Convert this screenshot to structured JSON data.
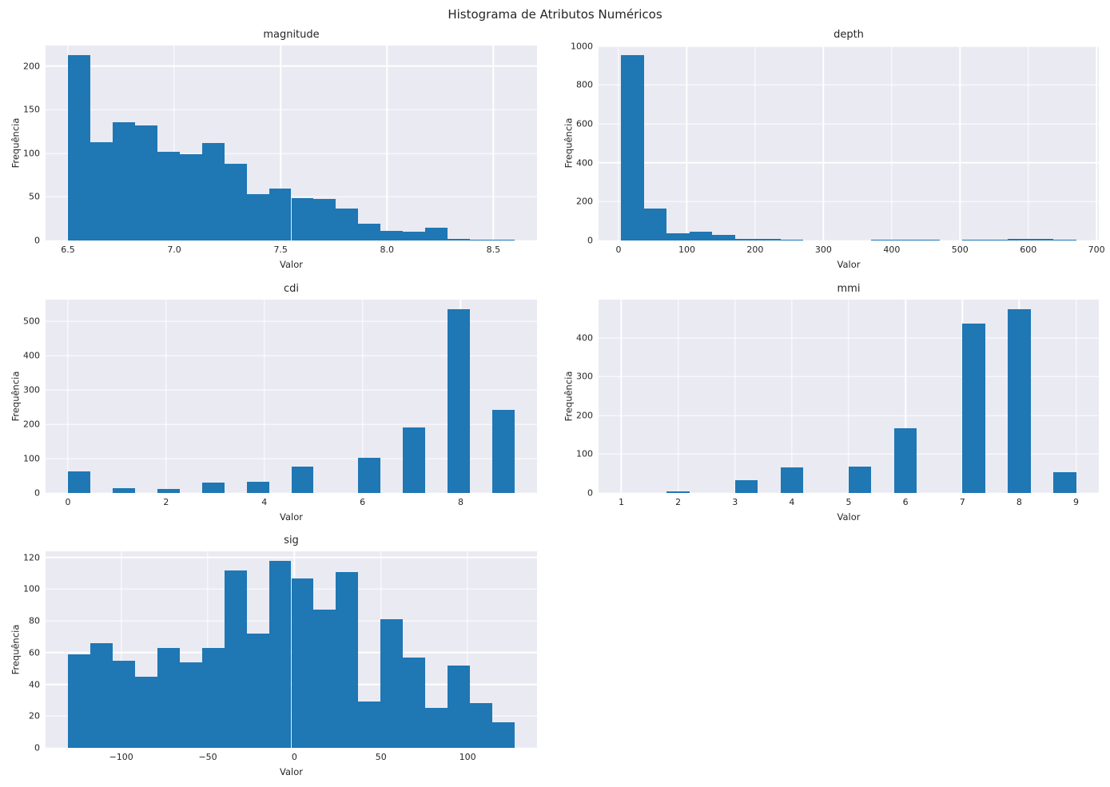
{
  "figure_title": "Histograma de Atributos Numéricos",
  "colors": {
    "bar": "#1f77b4",
    "plot_background": "#eaeaf2",
    "gridline": "#ffffff",
    "text": "#262626",
    "figure_background": "#ffffff"
  },
  "chart_data": [
    {
      "id": "magnitude",
      "type": "bar",
      "title": "magnitude",
      "xlabel": "Valor",
      "ylabel": "Frequência",
      "xlim": [
        6.395,
        8.705
      ],
      "ylim": [
        0,
        223.7
      ],
      "bin_start": 6.5,
      "bin_width": 0.105,
      "values": [
        213,
        113,
        136,
        132,
        102,
        99,
        112,
        88,
        53,
        60,
        49,
        48,
        37,
        19,
        11,
        10,
        15,
        2,
        1,
        1
      ],
      "xtick_values": [
        6.5,
        7.0,
        7.5,
        8.0,
        8.5
      ],
      "xtick_labels": [
        "6.5",
        "7.0",
        "7.5",
        "8.0",
        "8.5"
      ],
      "ytick_values": [
        0,
        50,
        100,
        150,
        200
      ],
      "ytick_labels": [
        "0",
        "50",
        "100",
        "150",
        "200"
      ],
      "grid": true,
      "legend": false
    },
    {
      "id": "depth",
      "type": "bar",
      "title": "depth",
      "xlabel": "Valor",
      "ylabel": "Frequência",
      "xlim": [
        -29.3,
        703.3
      ],
      "ylim": [
        0,
        1002.8
      ],
      "bin_start": 4.0,
      "bin_width": 33.3,
      "values": [
        955,
        165,
        35,
        47,
        27,
        8,
        7,
        3,
        0,
        0,
        0,
        3,
        3,
        3,
        0,
        3,
        3,
        10,
        10,
        4
      ],
      "xtick_values": [
        0,
        100,
        200,
        300,
        400,
        500,
        600,
        700
      ],
      "xtick_labels": [
        "0",
        "100",
        "200",
        "300",
        "400",
        "500",
        "600",
        "700"
      ],
      "ytick_values": [
        0,
        200,
        400,
        600,
        800,
        1000
      ],
      "ytick_labels": [
        "0",
        "200",
        "400",
        "600",
        "800",
        "1000"
      ],
      "grid": true,
      "legend": false
    },
    {
      "id": "cdi",
      "type": "bar",
      "title": "cdi",
      "xlabel": "Valor",
      "ylabel": "Frequência",
      "xlim": [
        -0.455,
        9.555
      ],
      "ylim": [
        0,
        563.9
      ],
      "bin_start": 0,
      "bin_width": 0.455,
      "values": [
        64,
        0,
        14,
        0,
        12,
        0,
        31,
        0,
        33,
        0,
        78,
        0,
        0,
        103,
        0,
        192,
        0,
        537,
        0,
        243
      ],
      "xtick_values": [
        0,
        2,
        4,
        6,
        8
      ],
      "xtick_labels": [
        "0",
        "2",
        "4",
        "6",
        "8"
      ],
      "ytick_values": [
        0,
        100,
        200,
        300,
        400,
        500
      ],
      "ytick_labels": [
        "0",
        "100",
        "200",
        "300",
        "400",
        "500"
      ],
      "grid": true,
      "legend": false
    },
    {
      "id": "mmi",
      "type": "bar",
      "title": "mmi",
      "xlabel": "Valor",
      "ylabel": "Frequência",
      "xlim": [
        0.6,
        9.4
      ],
      "ylim": [
        0,
        498.8
      ],
      "bin_start": 1,
      "bin_width": 0.4,
      "values": [
        0,
        0,
        5,
        0,
        0,
        33,
        0,
        66,
        0,
        0,
        68,
        0,
        166,
        0,
        0,
        437,
        0,
        475,
        0,
        54
      ],
      "xtick_values": [
        1,
        2,
        3,
        4,
        5,
        6,
        7,
        8,
        9
      ],
      "xtick_labels": [
        "1",
        "2",
        "3",
        "4",
        "5",
        "6",
        "7",
        "8",
        "9"
      ],
      "ytick_values": [
        0,
        100,
        200,
        300,
        400
      ],
      "ytick_labels": [
        "0",
        "100",
        "200",
        "300",
        "400"
      ],
      "grid": true,
      "legend": false
    },
    {
      "id": "sig",
      "type": "bar",
      "title": "sig",
      "xlabel": "Valor",
      "ylabel": "Frequência",
      "xlim": [
        -143.7,
        140.1
      ],
      "ylim": [
        0,
        123.9
      ],
      "bin_start": -130.8,
      "bin_width": 12.9,
      "values": [
        59,
        66,
        55,
        45,
        63,
        54,
        63,
        112,
        72,
        118,
        107,
        87,
        111,
        29,
        81,
        57,
        25,
        52,
        28,
        16
      ],
      "xtick_values": [
        -100,
        -50,
        0,
        50,
        100
      ],
      "xtick_labels": [
        "−100",
        "−50",
        "0",
        "50",
        "100"
      ],
      "ytick_values": [
        0,
        20,
        40,
        60,
        80,
        100,
        120
      ],
      "ytick_labels": [
        "0",
        "20",
        "40",
        "60",
        "80",
        "100",
        "120"
      ],
      "grid": true,
      "legend": false
    }
  ]
}
